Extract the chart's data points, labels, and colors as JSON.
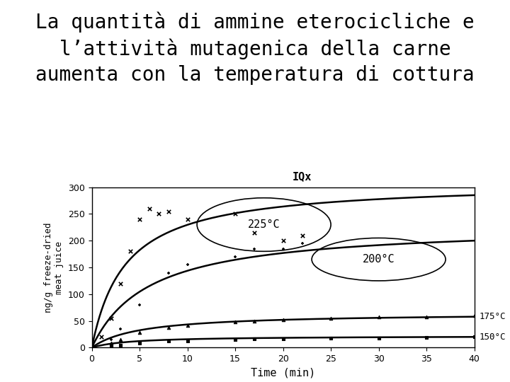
{
  "title_line1": "La quantità di ammine eterocicliche e",
  "title_line2": "l’attività mutagenica della carne",
  "title_line3": "aumenta con la temperatura di cottura",
  "xlabel": "Time (min)",
  "ylabel": "ng/g freeze-dried\nmeat juice",
  "x_max": 40,
  "y_max": 300,
  "curve_225_label": "225°C",
  "curve_200_label": "200°C",
  "curve_175_label": "175°C",
  "curve_150_label": "150°C",
  "IQx_label": "IQx",
  "background_color": "#ffffff",
  "plot_bg": "#ffffff",
  "curve_color": "#000000",
  "scatter_color": "#000000",
  "font_size_title": 20,
  "font_size_axis": 11,
  "font_size_label": 12
}
